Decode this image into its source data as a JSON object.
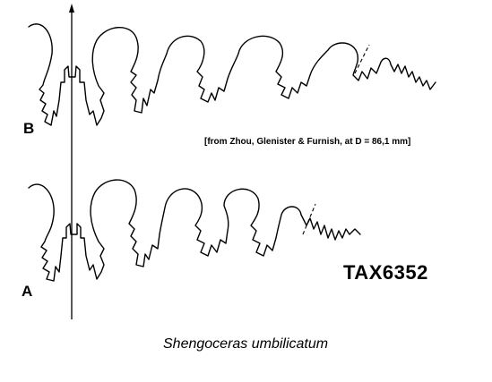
{
  "figure": {
    "label_b": "B",
    "label_a": "A",
    "citation": "[from Zhou, Glenister & Furnish, at  D = 86,1 mm]",
    "taxon_id": "TAX6352",
    "species": "Shengoceras umbilicatum"
  }
}
